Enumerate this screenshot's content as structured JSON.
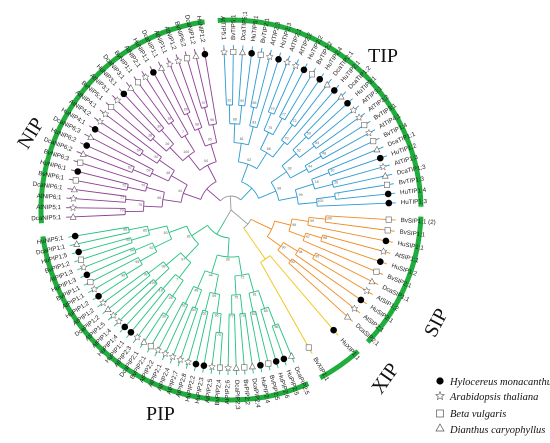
{
  "colors": {
    "arc": "#1fae3c",
    "TIP": "#2a9ad2",
    "NIP": "#8d3f94",
    "PIP": "#22c27e",
    "SIP": "#f08a1e",
    "XIP": "#f1c40f",
    "root": "#9a9a9a"
  },
  "groups": [
    {
      "key": "TIP",
      "label": "TIP"
    },
    {
      "key": "NIP",
      "label": "NIP"
    },
    {
      "key": "PIP",
      "label": "PIP"
    },
    {
      "key": "SIP",
      "label": "SIP"
    },
    {
      "key": "XIP",
      "label": "XIP"
    }
  ],
  "leaves": [
    {
      "label": "BvSIP1;1 (2)",
      "group": "SIP",
      "marker": "square"
    },
    {
      "label": "BvSIP1;1",
      "group": "SIP",
      "marker": "square"
    },
    {
      "label": "HuSIP1;1",
      "group": "SIP",
      "marker": "dot"
    },
    {
      "label": "AtSIP1;1",
      "group": "SIP",
      "marker": "star"
    },
    {
      "label": "HuSIP1;2",
      "group": "SIP",
      "marker": "dot"
    },
    {
      "label": "BvSIP2;1",
      "group": "SIP",
      "marker": "square"
    },
    {
      "label": "DcaSIP1;1",
      "group": "SIP",
      "marker": "triangle"
    },
    {
      "label": "AtSIP1;2",
      "group": "SIP",
      "marker": "star"
    },
    {
      "label": "HuSIP2;1",
      "group": "SIP",
      "marker": "dot"
    },
    {
      "label": "AtSIP2;1",
      "group": "SIP",
      "marker": "star"
    },
    {
      "label": "DcaSIP2;1",
      "group": "SIP",
      "marker": "triangle"
    },
    {
      "label": "HuXIP1;1",
      "group": "XIP",
      "marker": "dot"
    },
    {
      "label": "BvXIP1;1",
      "group": "XIP",
      "marker": "square"
    },
    {
      "label": "DcaPIP2;5",
      "group": "PIP",
      "marker": "triangle"
    },
    {
      "label": "HuPIP2;5",
      "group": "PIP",
      "marker": "dot"
    },
    {
      "label": "HuPIP2;6",
      "group": "PIP",
      "marker": "dot"
    },
    {
      "label": "BvPIP2;5",
      "group": "PIP",
      "marker": "square"
    },
    {
      "label": "HuPIP2;4",
      "group": "PIP",
      "marker": "dot"
    },
    {
      "label": "DcaPIP2;4",
      "group": "PIP",
      "marker": "triangle"
    },
    {
      "label": "BvPIP2;2",
      "group": "PIP",
      "marker": "square"
    },
    {
      "label": "DcaPIP2;3",
      "group": "PIP",
      "marker": "triangle"
    },
    {
      "label": "AtPIP2;6",
      "group": "PIP",
      "marker": "star"
    },
    {
      "label": "BvPIP2;4",
      "group": "PIP",
      "marker": "square"
    },
    {
      "label": "AtPIP2;5",
      "group": "PIP",
      "marker": "star"
    },
    {
      "label": "HuPIP2;3",
      "group": "PIP",
      "marker": "dot"
    },
    {
      "label": "HuPIP2;2",
      "group": "PIP",
      "marker": "dot"
    },
    {
      "label": "AtPIP2;8",
      "group": "PIP",
      "marker": "star"
    },
    {
      "label": "AtPIP2;7",
      "group": "PIP",
      "marker": "star"
    },
    {
      "label": "AtPIP2;4",
      "group": "PIP",
      "marker": "star"
    },
    {
      "label": "AtPIP2;1",
      "group": "PIP",
      "marker": "star"
    },
    {
      "label": "AtPIP2;2",
      "group": "PIP",
      "marker": "star"
    },
    {
      "label": "BvPIP2;1",
      "group": "PIP",
      "marker": "square"
    },
    {
      "label": "DcaPIP2;1",
      "group": "PIP",
      "marker": "triangle"
    },
    {
      "label": "AtPIP2;3",
      "group": "PIP",
      "marker": "star"
    },
    {
      "label": "HuPIP1;1",
      "group": "PIP",
      "marker": "dot"
    },
    {
      "label": "HuPIP1;4",
      "group": "PIP",
      "marker": "dot"
    },
    {
      "label": "AtPIP1;4",
      "group": "PIP",
      "marker": "star"
    },
    {
      "label": "AtPIP1;5",
      "group": "PIP",
      "marker": "star"
    },
    {
      "label": "DcaPIP1;2",
      "group": "PIP",
      "marker": "triangle"
    },
    {
      "label": "AtPIP1;2",
      "group": "PIP",
      "marker": "star"
    },
    {
      "label": "HuPIP1;2",
      "group": "PIP",
      "marker": "dot"
    },
    {
      "label": "AtPIP1;1",
      "group": "PIP",
      "marker": "star"
    },
    {
      "label": "BvPIP1;1",
      "group": "PIP",
      "marker": "square"
    },
    {
      "label": "HuPIP1;3",
      "group": "PIP",
      "marker": "dot"
    },
    {
      "label": "AtPIP1;3",
      "group": "PIP",
      "marker": "star"
    },
    {
      "label": "BvPIP1;2",
      "group": "PIP",
      "marker": "square"
    },
    {
      "label": "HuPIP1;5",
      "group": "PIP",
      "marker": "dot"
    },
    {
      "label": "DcaPIP1;1",
      "group": "PIP",
      "marker": "triangle"
    },
    {
      "label": "HuNIP5;1",
      "group": "PIP",
      "marker": "dot"
    },
    {
      "label": "DcaNIP5;1",
      "group": "NIP",
      "marker": "triangle"
    },
    {
      "label": "AtNIP5;1",
      "group": "NIP",
      "marker": "star"
    },
    {
      "label": "AtNIP6;1",
      "group": "NIP",
      "marker": "star"
    },
    {
      "label": "DcaNIP6;1",
      "group": "NIP",
      "marker": "triangle"
    },
    {
      "label": "BvNIP6;1",
      "group": "NIP",
      "marker": "square"
    },
    {
      "label": "HuNIP6;1",
      "group": "NIP",
      "marker": "dot"
    },
    {
      "label": "BvNIP6;3",
      "group": "NIP",
      "marker": "square"
    },
    {
      "label": "DcaNIP6;2",
      "group": "NIP",
      "marker": "triangle"
    },
    {
      "label": "HuNIP6;2",
      "group": "NIP",
      "marker": "dot"
    },
    {
      "label": "DcaNIP6;3",
      "group": "NIP",
      "marker": "triangle"
    },
    {
      "label": "HuNIP4;1",
      "group": "NIP",
      "marker": "dot"
    },
    {
      "label": "AtNIP4;2",
      "group": "NIP",
      "marker": "star"
    },
    {
      "label": "AtNIP4;1",
      "group": "NIP",
      "marker": "star"
    },
    {
      "label": "BvNIP5;1",
      "group": "NIP",
      "marker": "square"
    },
    {
      "label": "AtNIP3;1",
      "group": "NIP",
      "marker": "star"
    },
    {
      "label": "HuNIP3;1",
      "group": "NIP",
      "marker": "dot"
    },
    {
      "label": "DcaNIP3;1",
      "group": "NIP",
      "marker": "triangle"
    },
    {
      "label": "BvNIP1;1",
      "group": "NIP",
      "marker": "square"
    },
    {
      "label": "AtNIP2;1",
      "group": "NIP",
      "marker": "star"
    },
    {
      "label": "HuNIP1;1",
      "group": "NIP",
      "marker": "dot"
    },
    {
      "label": "DcaNIP1;1",
      "group": "NIP",
      "marker": "triangle"
    },
    {
      "label": "AtNIP1;1",
      "group": "NIP",
      "marker": "star"
    },
    {
      "label": "AtNIP1;2",
      "group": "NIP",
      "marker": "star"
    },
    {
      "label": "BvNIP6;2",
      "group": "NIP",
      "marker": "square"
    },
    {
      "label": "DcaNIP1;2",
      "group": "NIP",
      "marker": "triangle"
    },
    {
      "label": "HuNIP1;2",
      "group": "NIP",
      "marker": "dot"
    },
    {
      "label": "AtTIP5;1",
      "group": "TIP",
      "marker": "star"
    },
    {
      "label": "BvTIP5;1",
      "group": "TIP",
      "marker": "square"
    },
    {
      "label": "DcaTIP5;1",
      "group": "TIP",
      "marker": "triangle"
    },
    {
      "label": "HuTIP5;1",
      "group": "TIP",
      "marker": "dot"
    },
    {
      "label": "BvTIP2;1",
      "group": "TIP",
      "marker": "square"
    },
    {
      "label": "AtTIP2;3",
      "group": "TIP",
      "marker": "star"
    },
    {
      "label": "HuTIP2;3",
      "group": "TIP",
      "marker": "dot"
    },
    {
      "label": "AtTIP2;1",
      "group": "TIP",
      "marker": "star"
    },
    {
      "label": "AtTIP2;2",
      "group": "TIP",
      "marker": "star"
    },
    {
      "label": "HuTIP2;2",
      "group": "TIP",
      "marker": "dot"
    },
    {
      "label": "BvTIP2;2",
      "group": "TIP",
      "marker": "square"
    },
    {
      "label": "HuTIP2;4",
      "group": "TIP",
      "marker": "dot"
    },
    {
      "label": "DcaTIP2;1",
      "group": "TIP",
      "marker": "triangle"
    },
    {
      "label": "HuTIP2;1",
      "group": "TIP",
      "marker": "dot"
    },
    {
      "label": "DcaTIP1;2",
      "group": "TIP",
      "marker": "triangle"
    },
    {
      "label": "HuTIP3;1",
      "group": "TIP",
      "marker": "dot"
    },
    {
      "label": "AtTIP3;1",
      "group": "TIP",
      "marker": "star"
    },
    {
      "label": "AtTIP3;2",
      "group": "TIP",
      "marker": "star"
    },
    {
      "label": "BvTIP3;1",
      "group": "TIP",
      "marker": "square"
    },
    {
      "label": "AtTIP4;1",
      "group": "TIP",
      "marker": "star"
    },
    {
      "label": "BvTIP1;4",
      "group": "TIP",
      "marker": "square"
    },
    {
      "label": "DcaTIP1;1",
      "group": "TIP",
      "marker": "triangle"
    },
    {
      "label": "HuTIP1;2",
      "group": "TIP",
      "marker": "dot"
    },
    {
      "label": "AtTIP1;3",
      "group": "TIP",
      "marker": "star"
    },
    {
      "label": "DcaTIP1;3",
      "group": "TIP",
      "marker": "triangle"
    },
    {
      "label": "BvTIP1;3",
      "group": "TIP",
      "marker": "square"
    },
    {
      "label": "HuTIP1;4",
      "group": "TIP",
      "marker": "dot"
    },
    {
      "label": "HuTIP1;3",
      "group": "TIP",
      "marker": "dot"
    }
  ],
  "bootstrap": [
    "100",
    "99",
    "98",
    "97",
    "96",
    "95",
    "94",
    "92",
    "90",
    "88",
    "85",
    "83",
    "81",
    "79",
    "77",
    "75",
    "72",
    "70",
    "66",
    "62",
    "59",
    "54",
    "52",
    "48",
    "44",
    "38",
    "30",
    "26",
    "18",
    "7"
  ],
  "legend": [
    {
      "marker": "dot",
      "label": "Hylocereus monacanthus"
    },
    {
      "marker": "star",
      "label": "Arabidopsis thaliana"
    },
    {
      "marker": "square",
      "label": "Beta vulgaris"
    },
    {
      "marker": "triangle",
      "label": "Dianthus caryophyllus"
    }
  ]
}
